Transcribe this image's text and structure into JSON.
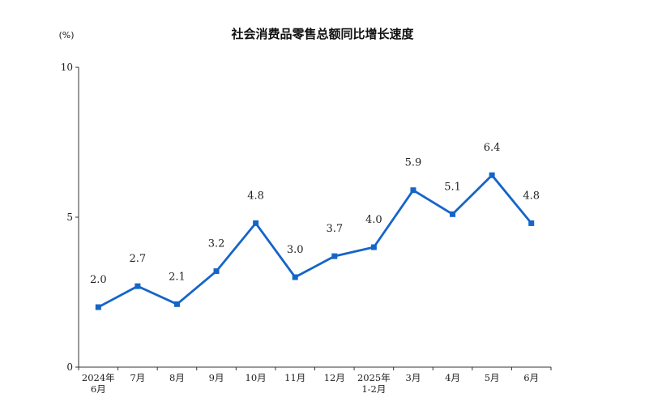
{
  "chart_data": {
    "type": "line",
    "title": "社会消费品零售总额同比增长速度",
    "unit_label": "(%)",
    "xlabel": "",
    "ylabel": "",
    "ylim": [
      0,
      10
    ],
    "yticks": [
      0,
      5,
      10
    ],
    "categories": [
      [
        "2024年",
        "6月"
      ],
      [
        "7月"
      ],
      [
        "8月"
      ],
      [
        "9月"
      ],
      [
        "10月"
      ],
      [
        "11月"
      ],
      [
        "12月"
      ],
      [
        "2025年",
        "1-2月"
      ],
      [
        "3月"
      ],
      [
        "4月"
      ],
      [
        "5月"
      ],
      [
        "6月"
      ]
    ],
    "series": [
      {
        "values": [
          2.0,
          2.7,
          2.1,
          3.2,
          4.8,
          3.0,
          3.7,
          4.0,
          5.9,
          5.1,
          6.4,
          4.8
        ],
        "labels": [
          "2.0",
          "2.7",
          "2.1",
          "3.2",
          "4.8",
          "3.0",
          "3.7",
          "4.0",
          "5.9",
          "5.1",
          "6.4",
          "4.8"
        ],
        "color": "#1565c8"
      }
    ],
    "grid": false,
    "legend": "none"
  }
}
